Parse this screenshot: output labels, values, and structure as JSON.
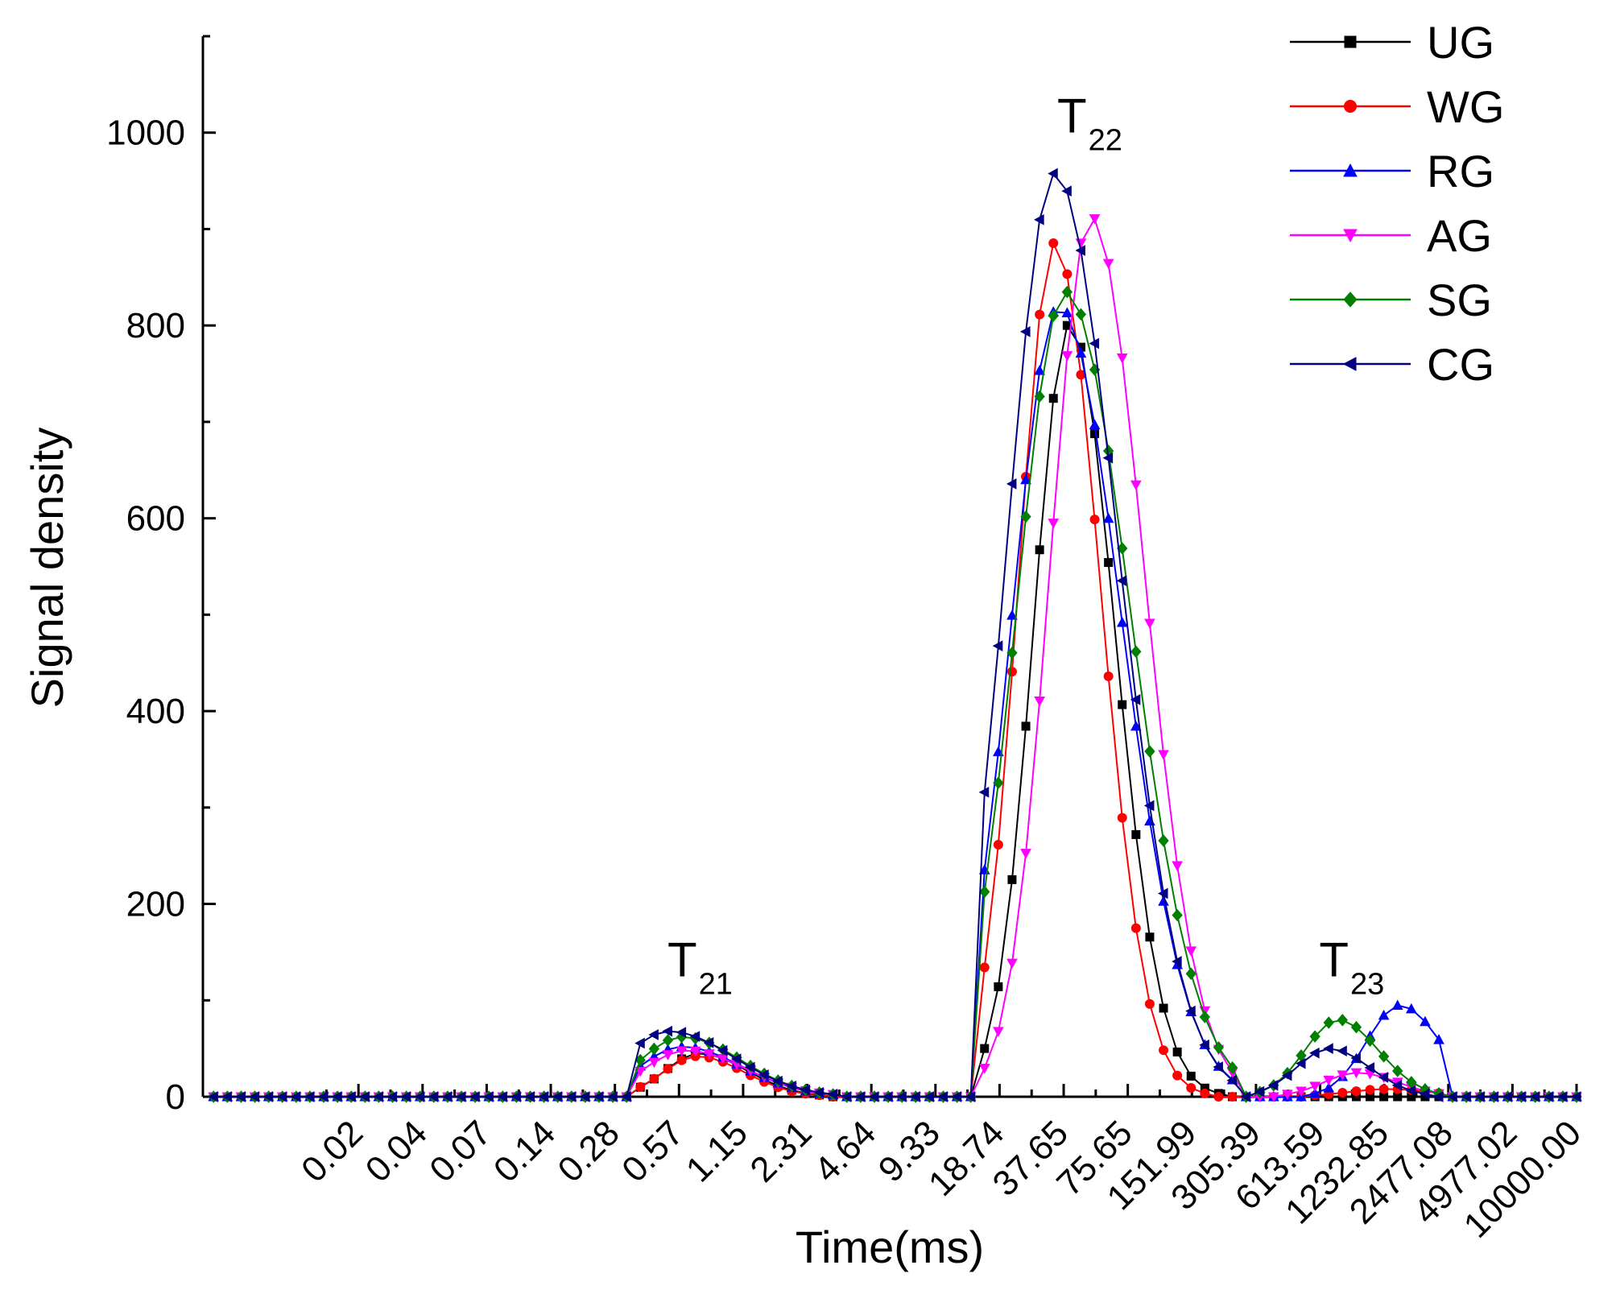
{
  "chart_data": {
    "type": "line",
    "xlabel": "Time(ms)",
    "ylabel": "Signal density",
    "xscale": "log",
    "xlim_log10": [
      -2.45,
      4.0
    ],
    "ylim": [
      0,
      1100
    ],
    "yticks": [
      0,
      200,
      400,
      600,
      800,
      1000
    ],
    "xtick_labels": [
      "0.02",
      "0.04",
      "0.07",
      "0.14",
      "0.28",
      "0.57",
      "1.15",
      "2.31",
      "4.64",
      "9.33",
      "18.74",
      "37.65",
      "75.65",
      "151.99",
      "305.39",
      "613.59",
      "1232.85",
      "2477.08",
      "4977.02",
      "10000.00"
    ],
    "legend_position": "top-right",
    "annotations": [
      {
        "main": "T",
        "sub": "21",
        "at_log10": -0.13,
        "at_y": 125
      },
      {
        "main": "T",
        "sub": "22",
        "at_log10": 1.7,
        "at_y": 1000
      },
      {
        "main": "T",
        "sub": "23",
        "at_log10": 2.93,
        "at_y": 125
      }
    ],
    "peaks": [
      {
        "name": "T21",
        "start_log10": -0.45,
        "end_log10": 0.75
      },
      {
        "name": "T22",
        "start_log10": 1.22,
        "end_log10": 2.4
      },
      {
        "name": "T23",
        "start_log10": 2.45,
        "end_log10": 3.4
      }
    ],
    "series": [
      {
        "name": "UG",
        "color": "#000000",
        "marker": "square",
        "peaks": [
          [
            -0.12,
            0.2,
            45,
            0.17
          ],
          [
            1.62,
            0.2,
            802,
            0.11
          ],
          [
            2.95,
            0.2,
            0,
            0
          ]
        ]
      },
      {
        "name": "WG",
        "color": "#ff0000",
        "marker": "circle",
        "peaks": [
          [
            -0.13,
            0.2,
            42,
            0.17
          ],
          [
            1.55,
            0.2,
            886,
            0.11
          ],
          [
            3.12,
            0.2,
            8,
            0
          ]
        ]
      },
      {
        "name": "RG",
        "color": "#0000ff",
        "marker": "triangle-up",
        "peaks": [
          [
            -0.2,
            0.25,
            52,
            0.17
          ],
          [
            1.57,
            0.27,
            820,
            0.14
          ],
          [
            3.17,
            0.18,
            95,
            0.1
          ]
        ]
      },
      {
        "name": "AG",
        "color": "#ff00ff",
        "marker": "triangle-down",
        "peaks": [
          [
            -0.18,
            0.25,
            48,
            0.17
          ],
          [
            1.72,
            0.23,
            913,
            0.13
          ],
          [
            2.97,
            0.18,
            25,
            0.1
          ]
        ]
      },
      {
        "name": "SG",
        "color": "#008000",
        "marker": "diamond",
        "peaks": [
          [
            -0.2,
            0.25,
            62,
            0.17
          ],
          [
            1.6,
            0.28,
            835,
            0.14
          ],
          [
            2.88,
            0.18,
            80,
            0.1
          ]
        ]
      },
      {
        "name": "CG",
        "color": "#000080",
        "marker": "triangle-left",
        "peaks": [
          [
            -0.26,
            0.27,
            68,
            0.17
          ],
          [
            1.55,
            0.27,
            958,
            0.14
          ],
          [
            2.84,
            0.18,
            50,
            0.1
          ]
        ]
      }
    ]
  }
}
